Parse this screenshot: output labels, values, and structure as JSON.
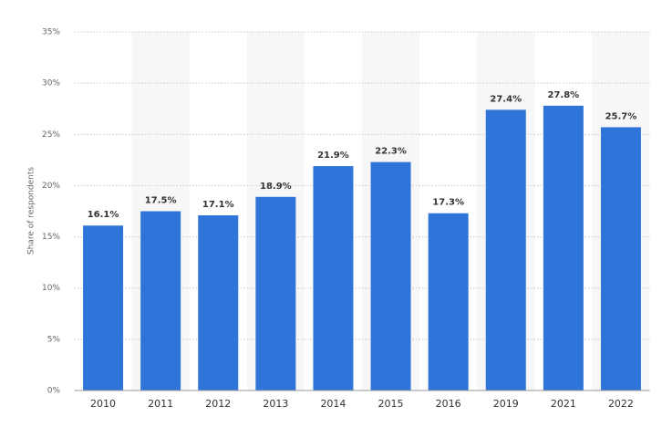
{
  "chart_data": {
    "type": "bar",
    "y_label": "Share of respondents",
    "categories": [
      "2010",
      "2011",
      "2012",
      "2013",
      "2014",
      "2015",
      "2016",
      "2019",
      "2021",
      "2022"
    ],
    "values": [
      16.1,
      17.5,
      17.1,
      18.9,
      21.9,
      22.3,
      17.3,
      27.4,
      27.8,
      25.7
    ],
    "value_labels": [
      "16.1%",
      "17.5%",
      "17.1%",
      "18.9%",
      "21.9%",
      "22.3%",
      "17.3%",
      "27.4%",
      "27.8%",
      "25.7%"
    ],
    "color": "#2f74d8",
    "ylim": [
      0,
      35
    ],
    "yticks": [
      {
        "value": 0,
        "label": "0%"
      },
      {
        "value": 5,
        "label": "5%"
      },
      {
        "value": 10,
        "label": "10%"
      },
      {
        "value": 15,
        "label": "15%"
      },
      {
        "value": 20,
        "label": "20%"
      },
      {
        "value": 25,
        "label": "25%"
      },
      {
        "value": 30,
        "label": "30%"
      },
      {
        "value": 35,
        "label": "35%"
      }
    ],
    "grid": true
  }
}
